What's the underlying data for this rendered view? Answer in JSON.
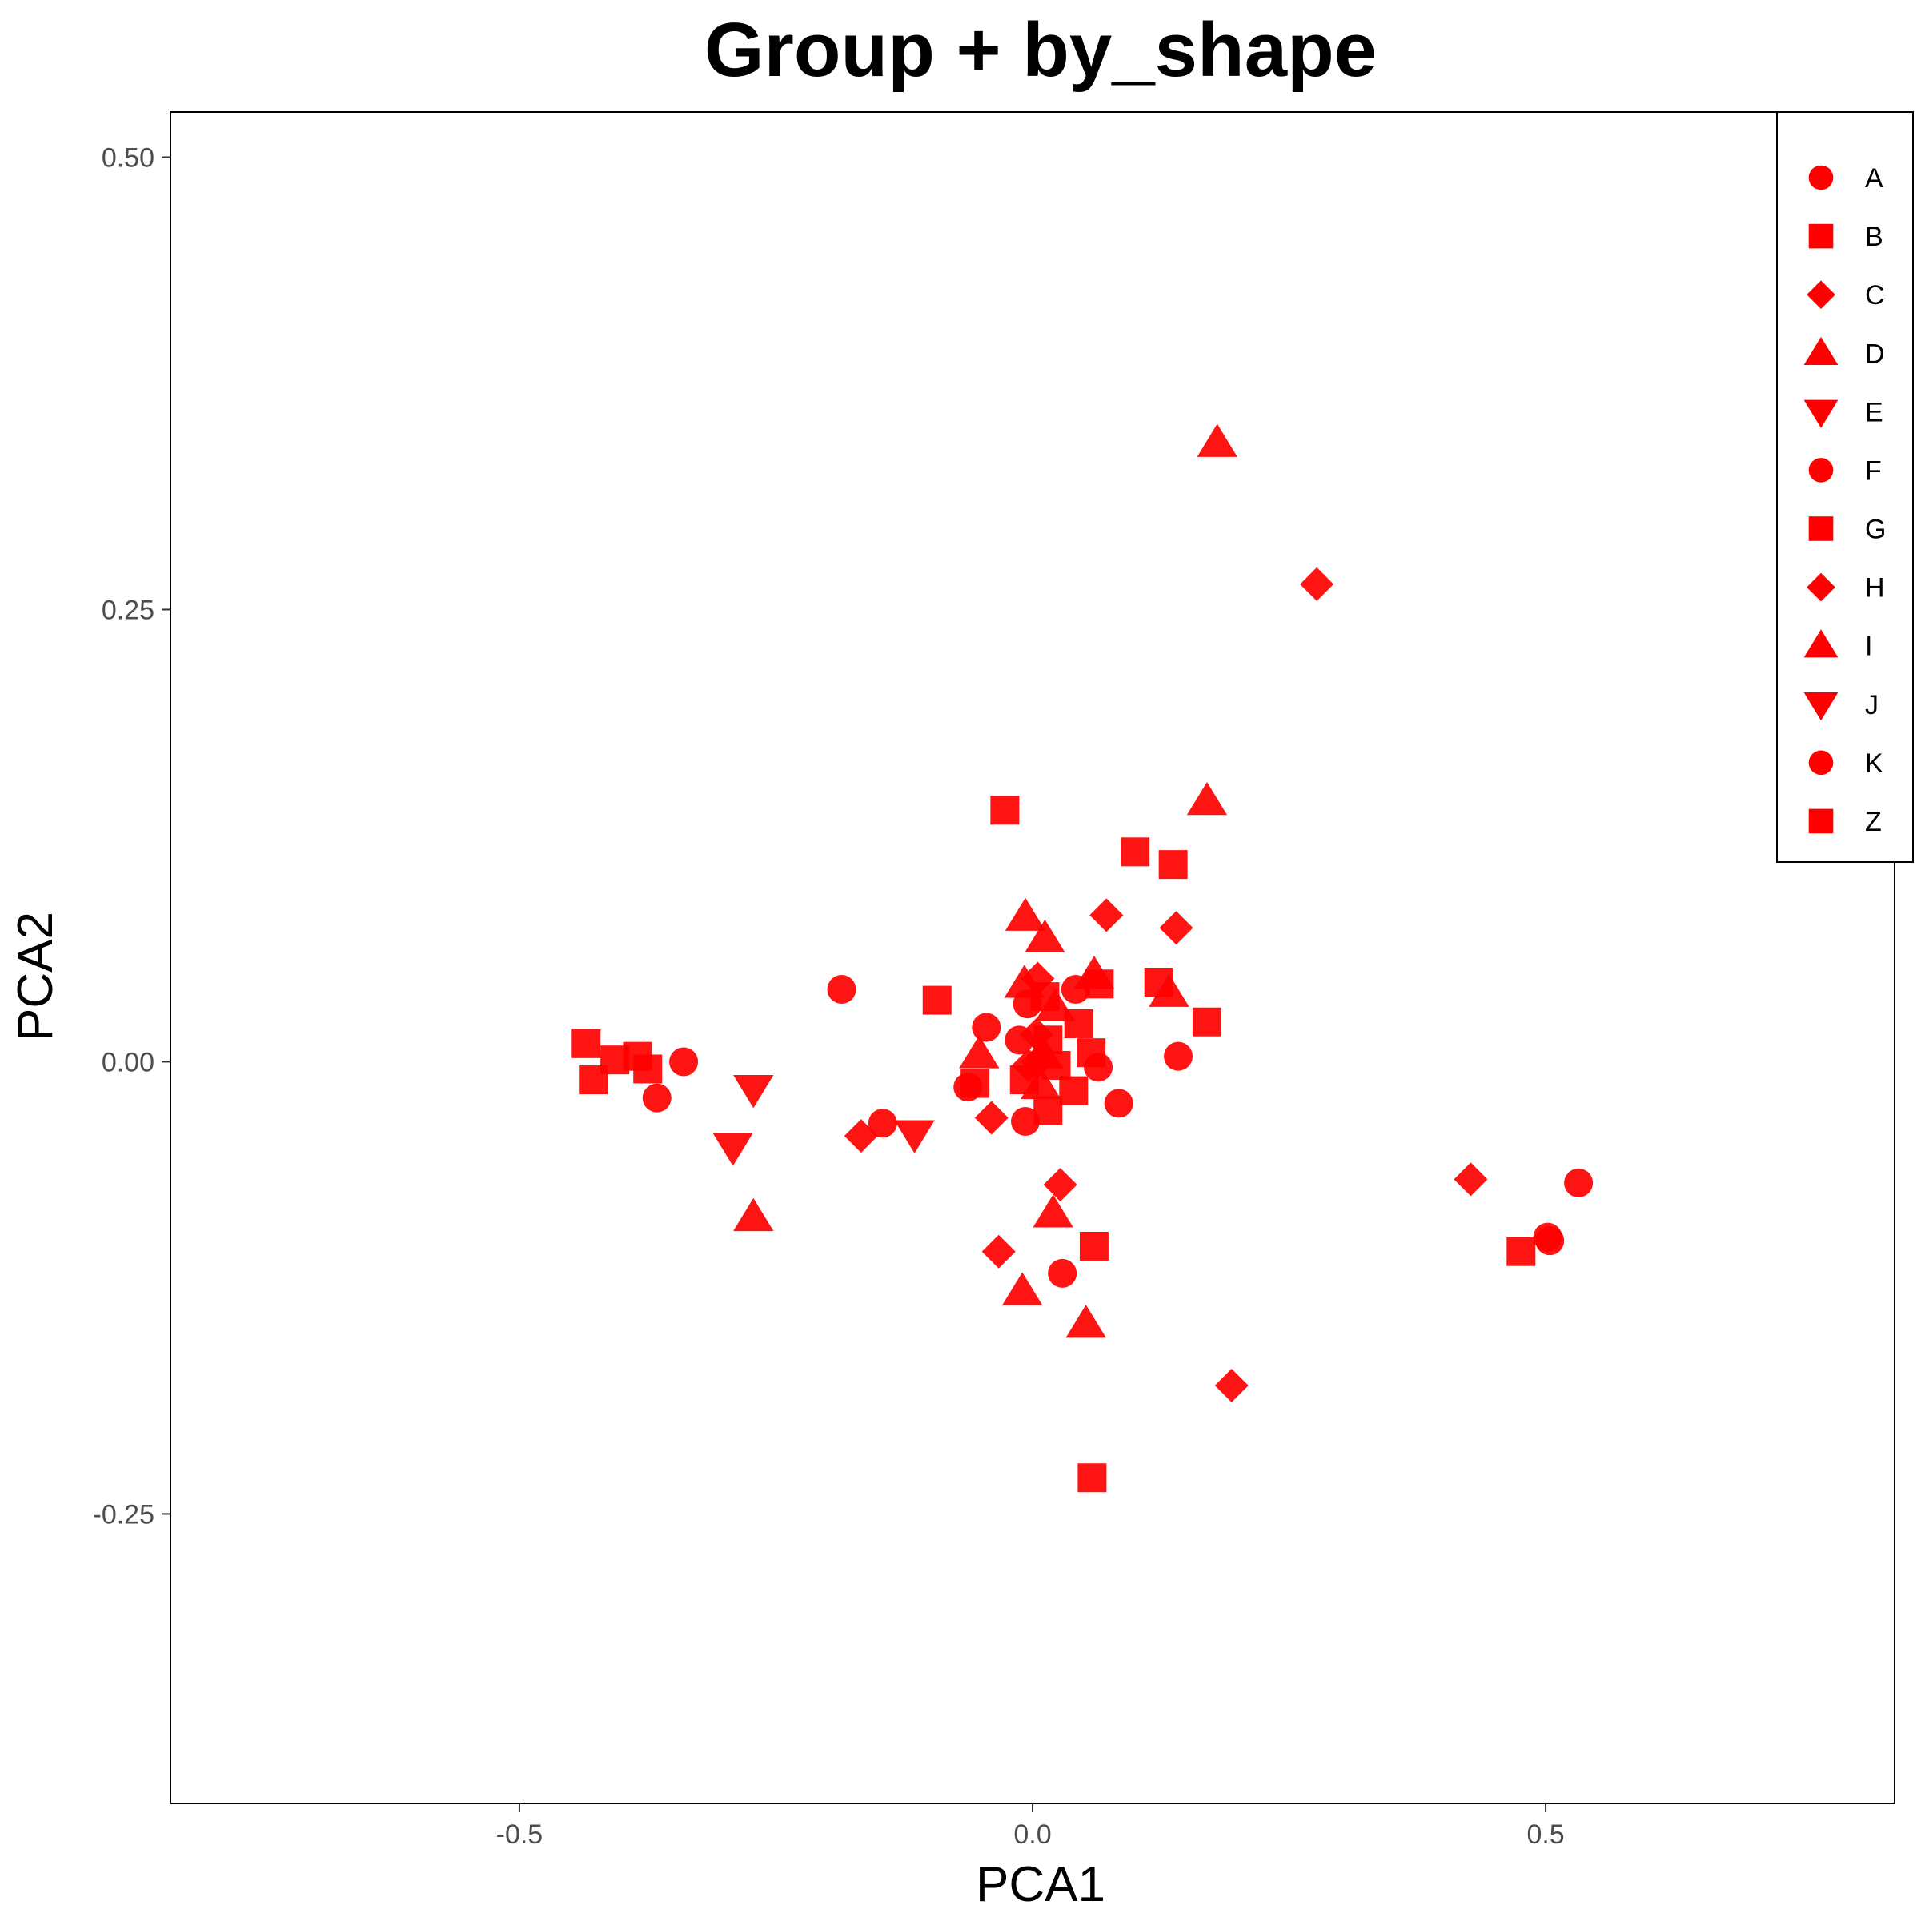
{
  "chart_data": {
    "type": "scatter",
    "title": "Group + by_shape",
    "xlabel": "PCA1",
    "ylabel": "PCA2",
    "xlim": [
      -0.84,
      0.84
    ],
    "ylim": [
      -0.41,
      0.525
    ],
    "x_ticks": [
      {
        "value": -0.5,
        "label": "-0.5"
      },
      {
        "value": 0.0,
        "label": "0.0"
      },
      {
        "value": 0.5,
        "label": "0.5"
      }
    ],
    "y_ticks": [
      {
        "value": 0.5,
        "label": "0.50"
      },
      {
        "value": 0.25,
        "label": "0.25"
      },
      {
        "value": 0.0,
        "label": "0.00"
      },
      {
        "value": -0.25,
        "label": "-0.25"
      }
    ],
    "grid": false,
    "legend_position": "top-right",
    "point_color": "#ff0000",
    "legend": [
      {
        "label": "A",
        "shape": "circle"
      },
      {
        "label": "B",
        "shape": "square"
      },
      {
        "label": "C",
        "shape": "diamond"
      },
      {
        "label": "D",
        "shape": "triangle-up"
      },
      {
        "label": "E",
        "shape": "triangle-down"
      },
      {
        "label": "F",
        "shape": "circle"
      },
      {
        "label": "G",
        "shape": "square"
      },
      {
        "label": "H",
        "shape": "diamond"
      },
      {
        "label": "I",
        "shape": "triangle-up"
      },
      {
        "label": "J",
        "shape": "triangle-down"
      },
      {
        "label": "K",
        "shape": "circle"
      },
      {
        "label": "Z",
        "shape": "square"
      }
    ],
    "points": [
      {
        "x": 0.18,
        "y": 0.342,
        "shape": "triangle-up"
      },
      {
        "x": 0.277,
        "y": 0.264,
        "shape": "diamond"
      },
      {
        "x": 0.17,
        "y": 0.144,
        "shape": "triangle-up"
      },
      {
        "x": -0.027,
        "y": 0.139,
        "shape": "square"
      },
      {
        "x": 0.1,
        "y": 0.116,
        "shape": "square"
      },
      {
        "x": 0.137,
        "y": 0.109,
        "shape": "square"
      },
      {
        "x": -0.007,
        "y": 0.08,
        "shape": "triangle-up"
      },
      {
        "x": 0.072,
        "y": 0.081,
        "shape": "diamond"
      },
      {
        "x": 0.14,
        "y": 0.074,
        "shape": "diamond"
      },
      {
        "x": 0.012,
        "y": 0.068,
        "shape": "triangle-up"
      },
      {
        "x": 0.06,
        "y": 0.048,
        "shape": "triangle-up"
      },
      {
        "x": 0.065,
        "y": 0.043,
        "shape": "square"
      },
      {
        "x": 0.123,
        "y": 0.044,
        "shape": "square"
      },
      {
        "x": 0.133,
        "y": 0.038,
        "shape": "triangle-up"
      },
      {
        "x": -0.186,
        "y": 0.04,
        "shape": "circle"
      },
      {
        "x": -0.093,
        "y": 0.034,
        "shape": "square"
      },
      {
        "x": -0.008,
        "y": 0.043,
        "shape": "triangle-up"
      },
      {
        "x": 0.005,
        "y": 0.046,
        "shape": "diamond"
      },
      {
        "x": 0.042,
        "y": 0.04,
        "shape": "circle"
      },
      {
        "x": -0.005,
        "y": 0.032,
        "shape": "circle"
      },
      {
        "x": 0.012,
        "y": 0.036,
        "shape": "square"
      },
      {
        "x": 0.022,
        "y": 0.03,
        "shape": "triangle-up"
      },
      {
        "x": 0.17,
        "y": 0.022,
        "shape": "square"
      },
      {
        "x": -0.045,
        "y": 0.019,
        "shape": "circle"
      },
      {
        "x": 0.045,
        "y": 0.021,
        "shape": "square"
      },
      {
        "x": -0.013,
        "y": 0.012,
        "shape": "circle"
      },
      {
        "x": 0.004,
        "y": 0.015,
        "shape": "diamond"
      },
      {
        "x": 0.015,
        "y": 0.012,
        "shape": "square"
      },
      {
        "x": -0.052,
        "y": 0.004,
        "shape": "triangle-up"
      },
      {
        "x": 0.057,
        "y": 0.005,
        "shape": "square"
      },
      {
        "x": 0.142,
        "y": 0.003,
        "shape": "circle"
      },
      {
        "x": 0.01,
        "y": 0.004,
        "shape": "triangle-up"
      },
      {
        "x": -0.004,
        "y": -0.002,
        "shape": "diamond"
      },
      {
        "x": 0.005,
        "y": 0.0,
        "shape": "diamond"
      },
      {
        "x": 0.023,
        "y": -0.002,
        "shape": "square"
      },
      {
        "x": 0.064,
        "y": -0.003,
        "shape": "circle"
      },
      {
        "x": -0.435,
        "y": 0.01,
        "shape": "square"
      },
      {
        "x": -0.407,
        "y": 0.001,
        "shape": "square"
      },
      {
        "x": -0.385,
        "y": 0.003,
        "shape": "square"
      },
      {
        "x": -0.375,
        "y": -0.004,
        "shape": "square"
      },
      {
        "x": -0.428,
        "y": -0.01,
        "shape": "square"
      },
      {
        "x": -0.34,
        "y": 0.0,
        "shape": "circle"
      },
      {
        "x": -0.366,
        "y": -0.02,
        "shape": "circle"
      },
      {
        "x": -0.272,
        "y": -0.015,
        "shape": "triangle-down"
      },
      {
        "x": -0.056,
        "y": -0.012,
        "shape": "square"
      },
      {
        "x": -0.063,
        "y": -0.014,
        "shape": "circle"
      },
      {
        "x": -0.008,
        "y": -0.01,
        "shape": "square"
      },
      {
        "x": 0.04,
        "y": -0.016,
        "shape": "square"
      },
      {
        "x": 0.008,
        "y": -0.013,
        "shape": "triangle-up"
      },
      {
        "x": 0.084,
        "y": -0.023,
        "shape": "circle"
      },
      {
        "x": 0.015,
        "y": -0.027,
        "shape": "square"
      },
      {
        "x": -0.04,
        "y": -0.031,
        "shape": "diamond"
      },
      {
        "x": -0.007,
        "y": -0.033,
        "shape": "circle"
      },
      {
        "x": -0.292,
        "y": -0.047,
        "shape": "triangle-down"
      },
      {
        "x": -0.167,
        "y": -0.041,
        "shape": "diamond"
      },
      {
        "x": -0.146,
        "y": -0.034,
        "shape": "circle"
      },
      {
        "x": -0.115,
        "y": -0.04,
        "shape": "triangle-down"
      },
      {
        "x": 0.027,
        "y": -0.068,
        "shape": "diamond"
      },
      {
        "x": -0.272,
        "y": -0.086,
        "shape": "triangle-up"
      },
      {
        "x": 0.02,
        "y": -0.084,
        "shape": "triangle-up"
      },
      {
        "x": 0.06,
        "y": -0.102,
        "shape": "square"
      },
      {
        "x": -0.033,
        "y": -0.105,
        "shape": "diamond"
      },
      {
        "x": 0.029,
        "y": -0.117,
        "shape": "circle"
      },
      {
        "x": -0.01,
        "y": -0.127,
        "shape": "triangle-up"
      },
      {
        "x": 0.052,
        "y": -0.145,
        "shape": "triangle-up"
      },
      {
        "x": 0.194,
        "y": -0.179,
        "shape": "diamond"
      },
      {
        "x": 0.058,
        "y": -0.23,
        "shape": "square"
      },
      {
        "x": 0.427,
        "y": -0.065,
        "shape": "diamond"
      },
      {
        "x": 0.532,
        "y": -0.067,
        "shape": "circle"
      },
      {
        "x": 0.476,
        "y": -0.105,
        "shape": "square"
      },
      {
        "x": 0.502,
        "y": -0.097,
        "shape": "circle"
      },
      {
        "x": 0.504,
        "y": -0.099,
        "shape": "circle"
      }
    ]
  }
}
